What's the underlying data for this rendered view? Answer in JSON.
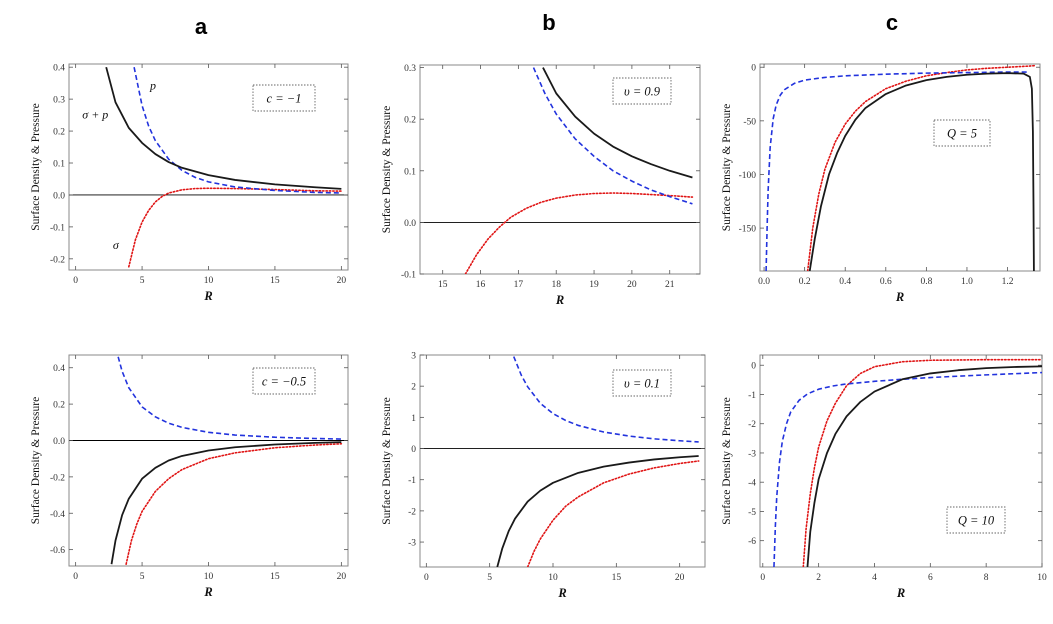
{
  "figure": {
    "column_labels": [
      "a",
      "b",
      "c"
    ],
    "y_axis_label": "Surface Density & Pressure"
  },
  "colors": {
    "sigma_plus_p": "#1a1a1a",
    "p": "#2233dd",
    "sigma": "#e01515",
    "zero_line": "#000000",
    "frame": "#8a8a8a"
  },
  "chart_data": [
    {
      "id": "a1",
      "type": "line",
      "column": "a",
      "param_label": "c = −1",
      "xlabel": "R",
      "ylabel": "Surface Density & Pressure",
      "xlim": [
        -0.5,
        20.5
      ],
      "ylim": [
        -0.235,
        0.41
      ],
      "xticks": [
        0,
        5,
        10,
        15,
        20
      ],
      "xtick_labels": [
        "0",
        "5",
        "10",
        "15",
        "20"
      ],
      "yticks": [
        -0.2,
        -0.1,
        0.0,
        0.1,
        0.2,
        0.3,
        0.4
      ],
      "ytick_labels": [
        "-0.2",
        "-0.1",
        "0.0",
        "0.1",
        "0.2",
        "0.3",
        "0.4"
      ],
      "zero_line": true,
      "annotations": [
        {
          "text": "σ + p",
          "x": 0.5,
          "y": 0.24
        },
        {
          "text": "p",
          "x": 5.6,
          "y": 0.33
        },
        {
          "text": "σ",
          "x": 2.8,
          "y": -0.17
        }
      ],
      "series": [
        {
          "name": "σ + p",
          "style": "solid",
          "x": [
            2.3,
            3,
            4,
            5,
            6,
            7,
            8,
            10,
            12,
            15,
            18,
            20
          ],
          "y": [
            0.4,
            0.29,
            0.21,
            0.163,
            0.128,
            0.103,
            0.085,
            0.062,
            0.047,
            0.033,
            0.024,
            0.019
          ]
        },
        {
          "name": "p",
          "style": "dashed",
          "x": [
            4.4,
            5,
            5.5,
            6,
            7,
            8,
            9,
            10,
            12,
            15,
            18,
            20
          ],
          "y": [
            0.4,
            0.28,
            0.215,
            0.17,
            0.112,
            0.077,
            0.055,
            0.041,
            0.025,
            0.014,
            0.008,
            0.006
          ]
        },
        {
          "name": "σ",
          "style": "dotted",
          "x": [
            4.0,
            4.5,
            5,
            5.5,
            6,
            6.5,
            7,
            8,
            9,
            10,
            12,
            15,
            18,
            20
          ],
          "y": [
            -0.225,
            -0.14,
            -0.085,
            -0.048,
            -0.022,
            -0.005,
            0.006,
            0.016,
            0.02,
            0.021,
            0.02,
            0.017,
            0.013,
            0.012
          ]
        }
      ]
    },
    {
      "id": "b1",
      "type": "line",
      "column": "b",
      "param_label": "υ = 0.9",
      "xlabel": "R",
      "ylabel": "Surface Density & Pressure",
      "xlim": [
        14.4,
        21.8
      ],
      "ylim": [
        -0.1,
        0.305
      ],
      "xticks": [
        15,
        16,
        17,
        18,
        19,
        20,
        21
      ],
      "xtick_labels": [
        "15",
        "16",
        "17",
        "18",
        "19",
        "20",
        "21"
      ],
      "yticks": [
        -0.1,
        0.0,
        0.1,
        0.2,
        0.3
      ],
      "ytick_labels": [
        "-0.1",
        "0.0",
        "0.1",
        "0.2",
        "0.3"
      ],
      "zero_line": true,
      "series": [
        {
          "name": "σ + p",
          "style": "solid",
          "x": [
            17.65,
            18,
            18.5,
            19,
            19.5,
            20,
            20.5,
            21,
            21.6
          ],
          "y": [
            0.3,
            0.25,
            0.205,
            0.172,
            0.147,
            0.128,
            0.113,
            0.1,
            0.087
          ]
        },
        {
          "name": "p",
          "style": "dashed",
          "x": [
            17.4,
            17.7,
            18,
            18.5,
            19,
            19.5,
            20,
            20.5,
            21,
            21.6
          ],
          "y": [
            0.3,
            0.25,
            0.21,
            0.162,
            0.128,
            0.1,
            0.08,
            0.063,
            0.05,
            0.036
          ]
        },
        {
          "name": "σ",
          "style": "dotted",
          "x": [
            15.6,
            15.9,
            16.2,
            16.5,
            16.8,
            17.2,
            17.6,
            18,
            18.5,
            19,
            19.5,
            20,
            20.5,
            21,
            21.6
          ],
          "y": [
            -0.1,
            -0.062,
            -0.032,
            -0.009,
            0.01,
            0.027,
            0.039,
            0.047,
            0.053,
            0.056,
            0.057,
            0.056,
            0.054,
            0.052,
            0.049
          ]
        }
      ]
    },
    {
      "id": "c1",
      "type": "line",
      "column": "c",
      "param_label": "Q = 5",
      "xlabel": "R",
      "ylabel": "Surface Density & Pressure",
      "xlim": [
        -0.02,
        1.36
      ],
      "ylim": [
        -190,
        3
      ],
      "xticks": [
        0.0,
        0.2,
        0.4,
        0.6,
        0.8,
        1.0,
        1.2
      ],
      "xtick_labels": [
        "0.0",
        "0.2",
        "0.4",
        "0.6",
        "0.8",
        "1.0",
        "1.2"
      ],
      "yticks": [
        0,
        -50,
        -100,
        -150
      ],
      "ytick_labels": [
        "0",
        "-50",
        "-100",
        "-150"
      ],
      "zero_line": false,
      "series": [
        {
          "name": "σ + p",
          "style": "solid",
          "x": [
            0.225,
            0.25,
            0.28,
            0.32,
            0.36,
            0.4,
            0.45,
            0.5,
            0.6,
            0.7,
            0.8,
            0.9,
            1.0,
            1.1,
            1.2,
            1.28,
            1.31,
            1.32,
            1.325,
            1.328,
            1.33
          ],
          "y": [
            -190,
            -160,
            -130,
            -100,
            -80,
            -64,
            -49,
            -38,
            -25,
            -17,
            -12,
            -9,
            -7,
            -6,
            -5.5,
            -6,
            -9,
            -20,
            -60,
            -130,
            -190
          ]
        },
        {
          "name": "p",
          "style": "dashed",
          "x": [
            0.01,
            0.015,
            0.02,
            0.03,
            0.045,
            0.06,
            0.08,
            0.1,
            0.15,
            0.2,
            0.3,
            0.4,
            0.6,
            0.8,
            1.0,
            1.2,
            1.3
          ],
          "y": [
            -190,
            -150,
            -115,
            -75,
            -48,
            -35,
            -26,
            -21,
            -15,
            -12,
            -9.5,
            -8,
            -6.5,
            -5.5,
            -5,
            -4.5,
            -4.5
          ]
        },
        {
          "name": "σ",
          "style": "dotted",
          "x": [
            0.215,
            0.24,
            0.27,
            0.3,
            0.35,
            0.4,
            0.45,
            0.5,
            0.6,
            0.7,
            0.8,
            0.9,
            1.0,
            1.1,
            1.2,
            1.3,
            1.34
          ],
          "y": [
            -190,
            -150,
            -118,
            -95,
            -70,
            -53,
            -41,
            -32,
            -20,
            -13,
            -8,
            -5,
            -2.5,
            -1,
            0,
            1,
            1.5
          ]
        }
      ]
    },
    {
      "id": "a2",
      "type": "line",
      "column": "a",
      "param_label": "c = −0.5",
      "xlabel": "R",
      "ylabel": "Surface Density & Pressure",
      "xlim": [
        -0.5,
        20.5
      ],
      "ylim": [
        -0.69,
        0.47
      ],
      "xticks": [
        0,
        5,
        10,
        15,
        20
      ],
      "xtick_labels": [
        "0",
        "5",
        "10",
        "15",
        "20"
      ],
      "yticks": [
        -0.6,
        -0.4,
        -0.2,
        0.0,
        0.2,
        0.4
      ],
      "ytick_labels": [
        "-0.6",
        "-0.4",
        "-0.2",
        "0.0",
        "0.2",
        "0.4"
      ],
      "zero_line": true,
      "series": [
        {
          "name": "σ + p",
          "style": "solid",
          "x": [
            2.7,
            3,
            3.5,
            4,
            5,
            6,
            7,
            8,
            10,
            12,
            15,
            18,
            20
          ],
          "y": [
            -0.68,
            -0.55,
            -0.41,
            -0.32,
            -0.21,
            -0.15,
            -0.11,
            -0.085,
            -0.055,
            -0.037,
            -0.022,
            -0.013,
            -0.009
          ]
        },
        {
          "name": "p",
          "style": "dashed",
          "x": [
            3.2,
            3.5,
            4,
            5,
            6,
            7,
            8,
            10,
            12,
            15,
            18,
            20
          ],
          "y": [
            0.46,
            0.38,
            0.29,
            0.185,
            0.13,
            0.095,
            0.072,
            0.045,
            0.03,
            0.018,
            0.011,
            0.008
          ]
        },
        {
          "name": "σ",
          "style": "dotted",
          "x": [
            3.8,
            4.2,
            4.6,
            5,
            6,
            7,
            8,
            10,
            12,
            15,
            18,
            20
          ],
          "y": [
            -0.68,
            -0.55,
            -0.46,
            -0.39,
            -0.28,
            -0.21,
            -0.16,
            -0.1,
            -0.068,
            -0.04,
            -0.025,
            -0.018
          ]
        }
      ]
    },
    {
      "id": "b2",
      "type": "line",
      "column": "b",
      "param_label": "υ = 0.1",
      "xlabel": "R",
      "ylabel": "Surface Density & Pressure",
      "xlim": [
        -0.5,
        22
      ],
      "ylim": [
        -3.8,
        3.0
      ],
      "xticks": [
        0,
        5,
        10,
        15,
        20
      ],
      "xtick_labels": [
        "0",
        "5",
        "10",
        "15",
        "20"
      ],
      "yticks": [
        -3,
        -2,
        -1,
        0,
        1,
        2,
        3
      ],
      "ytick_labels": [
        "-3",
        "-2",
        "-1",
        "0",
        "1",
        "2",
        "3"
      ],
      "zero_line": true,
      "series": [
        {
          "name": "σ + p",
          "style": "solid",
          "x": [
            5.6,
            6,
            6.5,
            7,
            8,
            9,
            10,
            12,
            14,
            16,
            18,
            20,
            21.5
          ],
          "y": [
            -3.8,
            -3.2,
            -2.65,
            -2.25,
            -1.7,
            -1.35,
            -1.1,
            -0.78,
            -0.58,
            -0.45,
            -0.35,
            -0.28,
            -0.24
          ]
        },
        {
          "name": "p",
          "style": "dashed",
          "x": [
            6.9,
            7.5,
            8,
            9,
            10,
            11,
            12,
            14,
            16,
            18,
            20,
            21.5
          ],
          "y": [
            2.95,
            2.35,
            1.98,
            1.45,
            1.12,
            0.9,
            0.74,
            0.53,
            0.4,
            0.31,
            0.25,
            0.21
          ]
        },
        {
          "name": "σ",
          "style": "dotted",
          "x": [
            8.0,
            8.5,
            9,
            10,
            11,
            12,
            14,
            16,
            18,
            20,
            21.5
          ],
          "y": [
            -3.8,
            -3.3,
            -2.9,
            -2.3,
            -1.85,
            -1.55,
            -1.1,
            -0.82,
            -0.62,
            -0.48,
            -0.4
          ]
        }
      ]
    },
    {
      "id": "c2",
      "type": "line",
      "column": "c",
      "param_label": "Q = 10",
      "xlabel": "R",
      "ylabel": "Surface Density & Pressure",
      "xlim": [
        -0.1,
        10
      ],
      "ylim": [
        -6.9,
        0.35
      ],
      "xticks": [
        0,
        2,
        4,
        6,
        8,
        10
      ],
      "xtick_labels": [
        "0",
        "2",
        "4",
        "6",
        "8",
        "10"
      ],
      "yticks": [
        0,
        -1,
        -2,
        -3,
        -4,
        -5,
        -6
      ],
      "ytick_labels": [
        "0",
        "-1",
        "-2",
        "-3",
        "-4",
        "-5",
        "-6"
      ],
      "zero_line": false,
      "series": [
        {
          "name": "σ + p",
          "style": "solid",
          "x": [
            1.6,
            1.7,
            1.85,
            2,
            2.3,
            2.6,
            3,
            3.5,
            4,
            5,
            6,
            7,
            8,
            9,
            10
          ],
          "y": [
            -6.9,
            -5.7,
            -4.7,
            -3.9,
            -3.0,
            -2.35,
            -1.75,
            -1.25,
            -0.9,
            -0.48,
            -0.28,
            -0.17,
            -0.1,
            -0.06,
            -0.04
          ]
        },
        {
          "name": "p",
          "style": "dashed",
          "x": [
            0.4,
            0.45,
            0.5,
            0.6,
            0.7,
            0.85,
            1,
            1.3,
            1.6,
            2,
            2.5,
            3,
            4,
            5,
            6,
            8,
            10
          ],
          "y": [
            -6.9,
            -5.5,
            -4.5,
            -3.3,
            -2.6,
            -2.0,
            -1.6,
            -1.2,
            -0.98,
            -0.82,
            -0.71,
            -0.64,
            -0.55,
            -0.48,
            -0.42,
            -0.33,
            -0.25
          ]
        },
        {
          "name": "σ",
          "style": "dotted",
          "x": [
            1.45,
            1.55,
            1.7,
            1.85,
            2,
            2.3,
            2.6,
            3,
            3.5,
            4,
            5,
            6,
            8,
            10
          ],
          "y": [
            -6.9,
            -5.6,
            -4.4,
            -3.5,
            -2.8,
            -1.9,
            -1.3,
            -0.7,
            -0.28,
            -0.05,
            0.12,
            0.17,
            0.19,
            0.19
          ]
        }
      ]
    }
  ]
}
